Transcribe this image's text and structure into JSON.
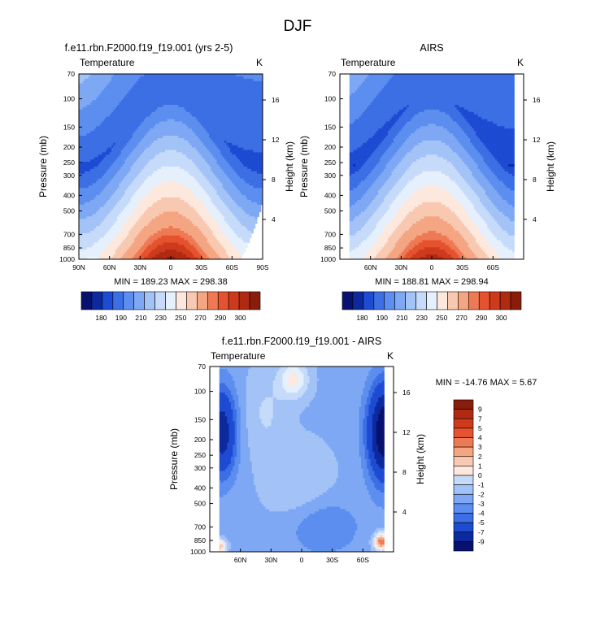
{
  "figure": {
    "title": "DJF"
  },
  "palettes": {
    "abs": [
      "#08116e",
      "#0c2a9e",
      "#1d4bd2",
      "#3c6fe4",
      "#5c8ef0",
      "#7ea8f4",
      "#a3c3f7",
      "#c6dbfa",
      "#e6f0fd",
      "#fde8dd",
      "#f9c8b0",
      "#f4a582",
      "#ee7a55",
      "#e5522f",
      "#cd3a1c",
      "#b02a12",
      "#8a1c0c"
    ],
    "diff": [
      "#08116e",
      "#0c2a9e",
      "#1d4bd2",
      "#3c6fe4",
      "#5c8ef0",
      "#7ea8f4",
      "#a3c3f7",
      "#c6dbfa",
      "#e6f0fd",
      "#fde8dd",
      "#f9c8b0",
      "#f4a582",
      "#ee7a55",
      "#e5522f",
      "#cd3a1c",
      "#b02a12",
      "#8a1c0c"
    ]
  },
  "chart_data": [
    {
      "type": "heatmap",
      "title": "f.e11.rbn.F2000.f19_f19.001 (yrs 2-5)",
      "subtitle_left": "Temperature",
      "subtitle_right": "K",
      "ylabel": "Pressure (mb)",
      "ylabel_right": "Height (km)",
      "x_ticks": [
        "90N",
        "60N",
        "30N",
        "0",
        "30S",
        "60S",
        "90S"
      ],
      "y_ticks": [
        "70",
        "100",
        "150",
        "200",
        "250",
        "300",
        "400",
        "500",
        "700",
        "850",
        "1000"
      ],
      "height_ticks": [
        "16",
        "12",
        "8",
        "4"
      ],
      "stats": "MIN = 189.23   MAX = 298.38",
      "colorbar_labels": [
        "180",
        "190",
        "210",
        "230",
        "250",
        "270",
        "290",
        "300"
      ],
      "min": 189.23,
      "max": 298.38
    },
    {
      "type": "heatmap",
      "title": "AIRS",
      "subtitle_left": "Temperature",
      "subtitle_right": "K",
      "ylabel": "Pressure (mb)",
      "ylabel_right": "Height (km)",
      "x_ticks": [
        "60N",
        "30N",
        "0",
        "30S",
        "60S"
      ],
      "y_ticks": [
        "70",
        "100",
        "150",
        "200",
        "250",
        "300",
        "400",
        "500",
        "700",
        "850",
        "1000"
      ],
      "height_ticks": [
        "16",
        "12",
        "8",
        "4"
      ],
      "stats": "MIN = 188.81   MAX = 298.94",
      "colorbar_labels": [
        "180",
        "190",
        "210",
        "230",
        "250",
        "270",
        "290",
        "300"
      ],
      "min": 188.81,
      "max": 298.94
    },
    {
      "type": "heatmap",
      "title": "f.e11.rbn.F2000.f19_f19.001 - AIRS",
      "subtitle_left": "Temperature",
      "subtitle_right": "K",
      "ylabel": "Pressure (mb)",
      "ylabel_right": "Height (km)",
      "x_ticks": [
        "60N",
        "30N",
        "0",
        "30S",
        "60S"
      ],
      "y_ticks": [
        "70",
        "100",
        "150",
        "200",
        "250",
        "300",
        "400",
        "500",
        "700",
        "850",
        "1000"
      ],
      "height_ticks": [
        "16",
        "12",
        "8",
        "4"
      ],
      "stats": "MIN = -14.76   MAX =  5.67",
      "colorbar_labels": [
        "9",
        "7",
        "5",
        "4",
        "3",
        "2",
        "1",
        "0",
        "-1",
        "-2",
        "-3",
        "-4",
        "-5",
        "-7",
        "-9"
      ],
      "min": -14.76,
      "max": 5.67
    }
  ]
}
